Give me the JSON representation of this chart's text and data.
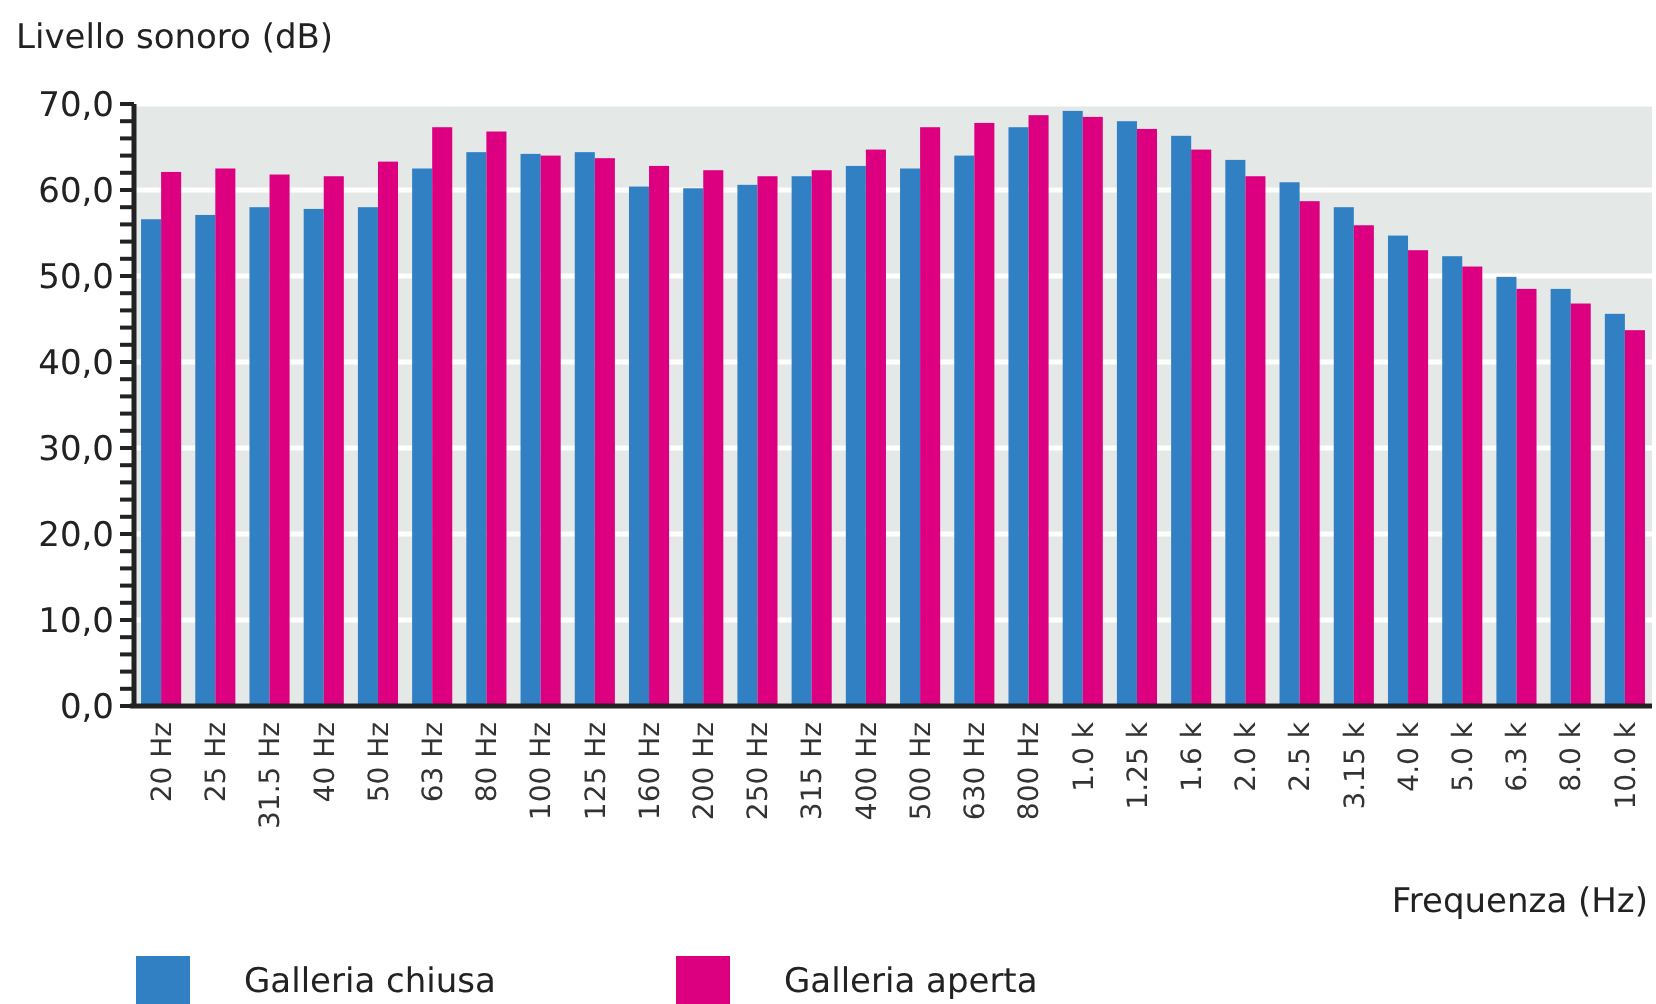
{
  "chart_data": {
    "type": "bar",
    "ylabel": "Livello sonoro (dB)",
    "xlabel": "Frequenza (Hz)",
    "categories": [
      "20 Hz",
      "25 Hz",
      "31.5 Hz",
      "40 Hz",
      "50 Hz",
      "63 Hz",
      "80 Hz",
      "100 Hz",
      "125 Hz",
      "160 Hz",
      "200 Hz",
      "250 Hz",
      "315 Hz",
      "400 Hz",
      "500 Hz",
      "630 Hz",
      "800 Hz",
      "1.0 k",
      "1.25 k",
      "1.6 k",
      "2.0 k",
      "2.5 k",
      "3.15 k",
      "4.0 k",
      "5.0 k",
      "6.3 k",
      "8.0 k",
      "10.0 k"
    ],
    "series": [
      {
        "name": "Galleria chiusa",
        "color": "#3180c3",
        "values": [
          56.6,
          57.1,
          58.0,
          57.8,
          58.0,
          62.5,
          64.4,
          64.2,
          64.4,
          60.4,
          60.2,
          60.6,
          61.6,
          62.8,
          62.5,
          64.0,
          67.3,
          69.2,
          68.0,
          66.3,
          63.5,
          60.9,
          58.0,
          54.7,
          52.3,
          49.9,
          48.5,
          45.6
        ]
      },
      {
        "name": "Galleria aperta",
        "color": "#dc0080",
        "values": [
          62.1,
          62.5,
          61.8,
          61.6,
          63.3,
          67.3,
          66.8,
          64.0,
          63.7,
          62.8,
          62.3,
          61.6,
          62.3,
          64.7,
          67.3,
          67.8,
          68.7,
          68.5,
          67.1,
          64.7,
          61.6,
          58.7,
          55.9,
          53.0,
          51.1,
          48.5,
          46.8,
          43.7
        ]
      }
    ],
    "ylim": [
      0,
      70
    ],
    "yticks": [
      {
        "value": 0,
        "label": "0,0"
      },
      {
        "value": 10,
        "label": "10,0"
      },
      {
        "value": 20,
        "label": "20,0"
      },
      {
        "value": 30,
        "label": "30,0"
      },
      {
        "value": 40,
        "label": "40,0"
      },
      {
        "value": 50,
        "label": "50,0"
      },
      {
        "value": 60,
        "label": "60,0"
      },
      {
        "value": 70,
        "label": "70,0"
      }
    ],
    "grid": "y",
    "legend": "bottom"
  }
}
